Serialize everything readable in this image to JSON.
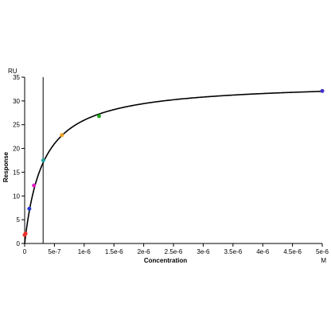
{
  "chart_data": {
    "type": "scatter",
    "title": "",
    "xlabel": "Concentration",
    "ylabel": "Response",
    "x_unit": "M",
    "y_unit": "RU",
    "xlim": [
      0,
      5e-06
    ],
    "ylim": [
      0,
      35
    ],
    "x_ticks": [
      0,
      5e-07,
      1e-06,
      1.5e-06,
      2e-06,
      2.5e-06,
      3e-06,
      3.5e-06,
      4e-06,
      4.5e-06,
      5e-06
    ],
    "x_tick_labels": [
      "0",
      "5e-7",
      "1e-6",
      "1.5e-6",
      "2e-6",
      "2.5e-6",
      "3e-6",
      "3.5e-6",
      "4e-6",
      "4.5e-6",
      "5e-6"
    ],
    "y_ticks": [
      0,
      5,
      10,
      15,
      20,
      25,
      30,
      35
    ],
    "y_tick_labels": [
      "0",
      "5",
      "10",
      "15",
      "20",
      "25",
      "30",
      "35"
    ],
    "points": [
      {
        "x": 0,
        "y": 1.8,
        "color": "#e8302a"
      },
      {
        "x": 1.5e-08,
        "y": 2.1,
        "color": "#e8302a"
      },
      {
        "x": 7.8e-08,
        "y": 7.3,
        "color": "#2233cc"
      },
      {
        "x": 1.56e-07,
        "y": 12.2,
        "color": "#e020c0"
      },
      {
        "x": 3.13e-07,
        "y": 17.5,
        "color": "#20a0a0"
      },
      {
        "x": 6.25e-07,
        "y": 22.8,
        "color": "#f0a020"
      },
      {
        "x": 1.25e-06,
        "y": 26.8,
        "color": "#22aa22"
      },
      {
        "x": 5e-06,
        "y": 32.1,
        "color": "#4433cc"
      }
    ],
    "fit": {
      "model": "steady-state affinity",
      "rmax": 34,
      "kd": 3.1e-07,
      "color": "#000000"
    },
    "vline_x": 3.1e-07,
    "grid": false,
    "legend": "none"
  }
}
